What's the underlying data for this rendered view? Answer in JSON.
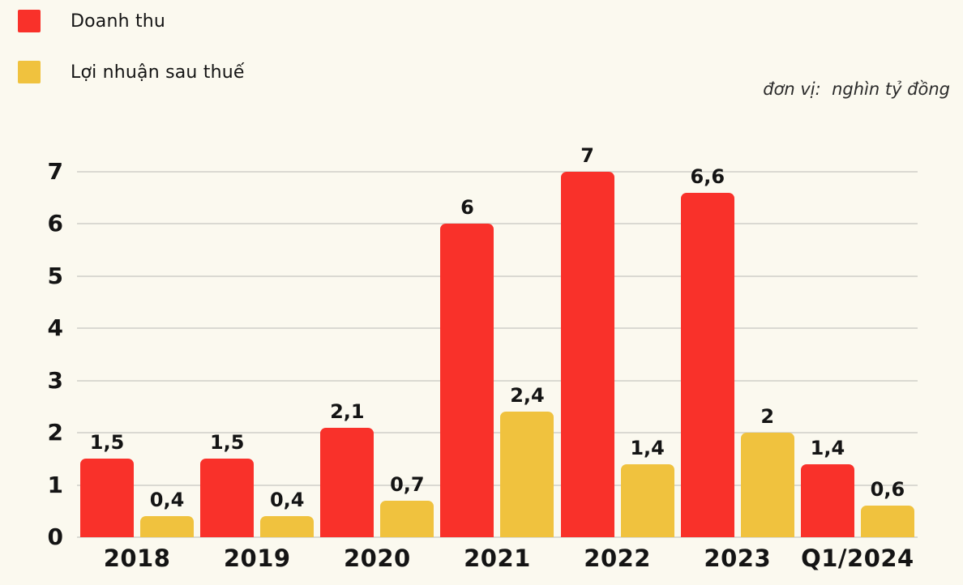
{
  "background": "#FBF9EF",
  "grid_color": "#DAD9D2",
  "text_color": "#141414",
  "legend": {
    "items": [
      {
        "label": "Doanh thu",
        "color": "#F9312A"
      },
      {
        "label": "Lợi nhuận sau thuế",
        "color": "#F0C23E"
      }
    ]
  },
  "unit_note": "đơn vị:  nghìn tỷ đồng",
  "chart_data": {
    "type": "bar",
    "title": "",
    "xlabel": "",
    "ylabel": "",
    "unit": "nghìn tỷ đồng",
    "categories": [
      "2018",
      "2019",
      "2020",
      "2021",
      "2022",
      "2023",
      "Q1/2024"
    ],
    "series": [
      {
        "name": "Doanh thu",
        "color": "#F9312A",
        "values": [
          1.5,
          1.5,
          2.1,
          6,
          7,
          6.6,
          1.4
        ],
        "labels": [
          "1,5",
          "1,5",
          "2,1",
          "6",
          "7",
          "6,6",
          "1,4"
        ]
      },
      {
        "name": "Lợi nhuận sau thuế",
        "color": "#F0C23E",
        "values": [
          0.4,
          0.4,
          0.7,
          2.4,
          1.4,
          2,
          0.6
        ],
        "labels": [
          "0,4",
          "0,4",
          "0,7",
          "2,4",
          "1,4",
          "2",
          "0,6"
        ]
      }
    ],
    "ylim": [
      0,
      7
    ],
    "yticks": [
      0,
      1,
      2,
      3,
      4,
      5,
      6,
      7
    ],
    "grid": true,
    "legend_position": "top-left"
  }
}
